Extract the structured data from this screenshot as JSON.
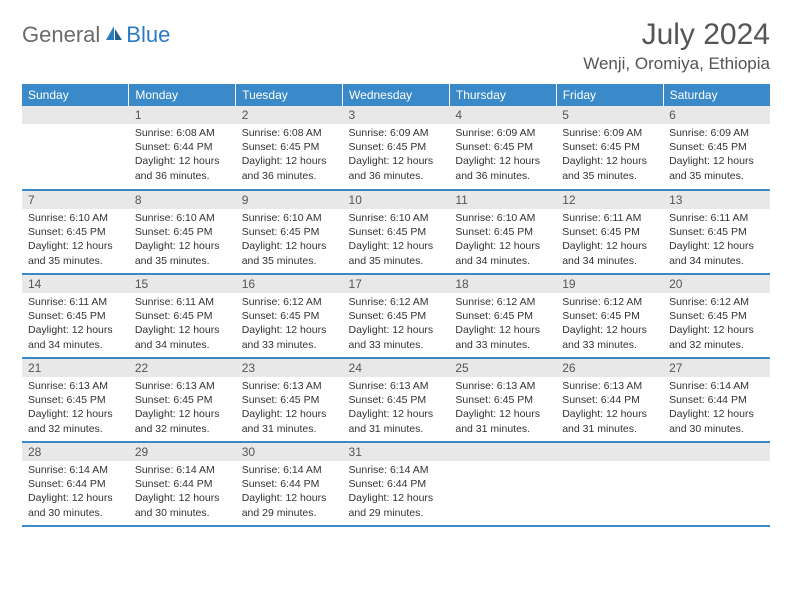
{
  "logo": {
    "general": "General",
    "blue": "Blue"
  },
  "title": "July 2024",
  "location": "Wenji, Oromiya, Ethiopia",
  "header_color": "#3a89c9",
  "daynum_bg": "#e8e8e8",
  "text_color": "#333333",
  "days_of_week": [
    "Sunday",
    "Monday",
    "Tuesday",
    "Wednesday",
    "Thursday",
    "Friday",
    "Saturday"
  ],
  "weeks": [
    [
      null,
      {
        "n": "1",
        "sunrise": "Sunrise: 6:08 AM",
        "sunset": "Sunset: 6:44 PM",
        "daylight": "Daylight: 12 hours and 36 minutes."
      },
      {
        "n": "2",
        "sunrise": "Sunrise: 6:08 AM",
        "sunset": "Sunset: 6:45 PM",
        "daylight": "Daylight: 12 hours and 36 minutes."
      },
      {
        "n": "3",
        "sunrise": "Sunrise: 6:09 AM",
        "sunset": "Sunset: 6:45 PM",
        "daylight": "Daylight: 12 hours and 36 minutes."
      },
      {
        "n": "4",
        "sunrise": "Sunrise: 6:09 AM",
        "sunset": "Sunset: 6:45 PM",
        "daylight": "Daylight: 12 hours and 36 minutes."
      },
      {
        "n": "5",
        "sunrise": "Sunrise: 6:09 AM",
        "sunset": "Sunset: 6:45 PM",
        "daylight": "Daylight: 12 hours and 35 minutes."
      },
      {
        "n": "6",
        "sunrise": "Sunrise: 6:09 AM",
        "sunset": "Sunset: 6:45 PM",
        "daylight": "Daylight: 12 hours and 35 minutes."
      }
    ],
    [
      {
        "n": "7",
        "sunrise": "Sunrise: 6:10 AM",
        "sunset": "Sunset: 6:45 PM",
        "daylight": "Daylight: 12 hours and 35 minutes."
      },
      {
        "n": "8",
        "sunrise": "Sunrise: 6:10 AM",
        "sunset": "Sunset: 6:45 PM",
        "daylight": "Daylight: 12 hours and 35 minutes."
      },
      {
        "n": "9",
        "sunrise": "Sunrise: 6:10 AM",
        "sunset": "Sunset: 6:45 PM",
        "daylight": "Daylight: 12 hours and 35 minutes."
      },
      {
        "n": "10",
        "sunrise": "Sunrise: 6:10 AM",
        "sunset": "Sunset: 6:45 PM",
        "daylight": "Daylight: 12 hours and 35 minutes."
      },
      {
        "n": "11",
        "sunrise": "Sunrise: 6:10 AM",
        "sunset": "Sunset: 6:45 PM",
        "daylight": "Daylight: 12 hours and 34 minutes."
      },
      {
        "n": "12",
        "sunrise": "Sunrise: 6:11 AM",
        "sunset": "Sunset: 6:45 PM",
        "daylight": "Daylight: 12 hours and 34 minutes."
      },
      {
        "n": "13",
        "sunrise": "Sunrise: 6:11 AM",
        "sunset": "Sunset: 6:45 PM",
        "daylight": "Daylight: 12 hours and 34 minutes."
      }
    ],
    [
      {
        "n": "14",
        "sunrise": "Sunrise: 6:11 AM",
        "sunset": "Sunset: 6:45 PM",
        "daylight": "Daylight: 12 hours and 34 minutes."
      },
      {
        "n": "15",
        "sunrise": "Sunrise: 6:11 AM",
        "sunset": "Sunset: 6:45 PM",
        "daylight": "Daylight: 12 hours and 34 minutes."
      },
      {
        "n": "16",
        "sunrise": "Sunrise: 6:12 AM",
        "sunset": "Sunset: 6:45 PM",
        "daylight": "Daylight: 12 hours and 33 minutes."
      },
      {
        "n": "17",
        "sunrise": "Sunrise: 6:12 AM",
        "sunset": "Sunset: 6:45 PM",
        "daylight": "Daylight: 12 hours and 33 minutes."
      },
      {
        "n": "18",
        "sunrise": "Sunrise: 6:12 AM",
        "sunset": "Sunset: 6:45 PM",
        "daylight": "Daylight: 12 hours and 33 minutes."
      },
      {
        "n": "19",
        "sunrise": "Sunrise: 6:12 AM",
        "sunset": "Sunset: 6:45 PM",
        "daylight": "Daylight: 12 hours and 33 minutes."
      },
      {
        "n": "20",
        "sunrise": "Sunrise: 6:12 AM",
        "sunset": "Sunset: 6:45 PM",
        "daylight": "Daylight: 12 hours and 32 minutes."
      }
    ],
    [
      {
        "n": "21",
        "sunrise": "Sunrise: 6:13 AM",
        "sunset": "Sunset: 6:45 PM",
        "daylight": "Daylight: 12 hours and 32 minutes."
      },
      {
        "n": "22",
        "sunrise": "Sunrise: 6:13 AM",
        "sunset": "Sunset: 6:45 PM",
        "daylight": "Daylight: 12 hours and 32 minutes."
      },
      {
        "n": "23",
        "sunrise": "Sunrise: 6:13 AM",
        "sunset": "Sunset: 6:45 PM",
        "daylight": "Daylight: 12 hours and 31 minutes."
      },
      {
        "n": "24",
        "sunrise": "Sunrise: 6:13 AM",
        "sunset": "Sunset: 6:45 PM",
        "daylight": "Daylight: 12 hours and 31 minutes."
      },
      {
        "n": "25",
        "sunrise": "Sunrise: 6:13 AM",
        "sunset": "Sunset: 6:45 PM",
        "daylight": "Daylight: 12 hours and 31 minutes."
      },
      {
        "n": "26",
        "sunrise": "Sunrise: 6:13 AM",
        "sunset": "Sunset: 6:44 PM",
        "daylight": "Daylight: 12 hours and 31 minutes."
      },
      {
        "n": "27",
        "sunrise": "Sunrise: 6:14 AM",
        "sunset": "Sunset: 6:44 PM",
        "daylight": "Daylight: 12 hours and 30 minutes."
      }
    ],
    [
      {
        "n": "28",
        "sunrise": "Sunrise: 6:14 AM",
        "sunset": "Sunset: 6:44 PM",
        "daylight": "Daylight: 12 hours and 30 minutes."
      },
      {
        "n": "29",
        "sunrise": "Sunrise: 6:14 AM",
        "sunset": "Sunset: 6:44 PM",
        "daylight": "Daylight: 12 hours and 30 minutes."
      },
      {
        "n": "30",
        "sunrise": "Sunrise: 6:14 AM",
        "sunset": "Sunset: 6:44 PM",
        "daylight": "Daylight: 12 hours and 29 minutes."
      },
      {
        "n": "31",
        "sunrise": "Sunrise: 6:14 AM",
        "sunset": "Sunset: 6:44 PM",
        "daylight": "Daylight: 12 hours and 29 minutes."
      },
      null,
      null,
      null
    ]
  ]
}
